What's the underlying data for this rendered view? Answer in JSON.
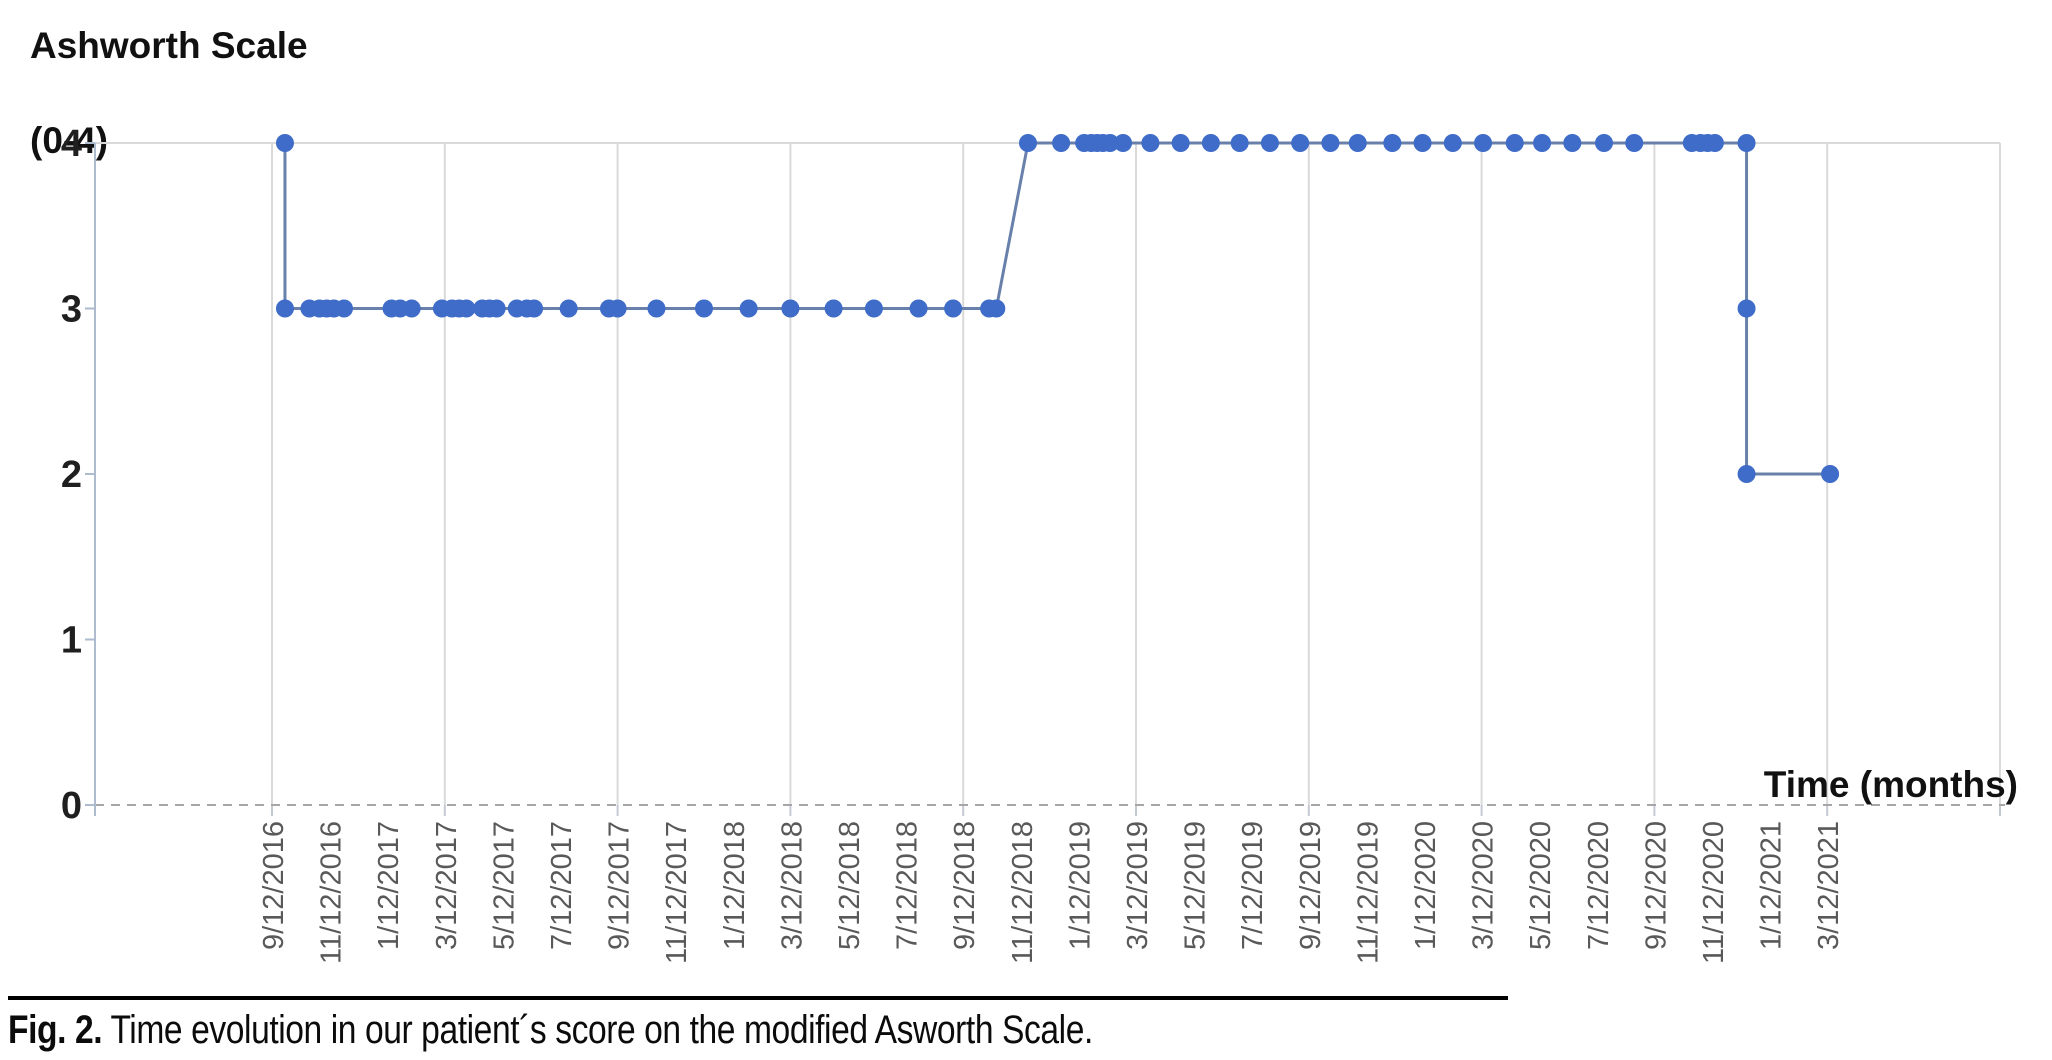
{
  "chart_data": {
    "type": "scatter",
    "title": "Ashworth Scale (0-4)",
    "y_axis_title_lines": [
      "Ashworth Scale",
      "(0-4)"
    ],
    "x_axis_title": "Time (months)",
    "ylabel": "Ashworth Scale (0-4)",
    "xlabel": "Time (months)",
    "ylim": [
      0,
      4
    ],
    "y_ticks": [
      4,
      3,
      2,
      1,
      0
    ],
    "x_tick_labels": [
      "9/12/2016",
      "11/12/2016",
      "1/12/2017",
      "3/12/2017",
      "5/12/2017",
      "7/12/2017",
      "9/12/2017",
      "11/12/2017",
      "1/12/2018",
      "3/12/2018",
      "5/12/2018",
      "7/12/2018",
      "9/12/2018",
      "11/12/2018",
      "1/12/2019",
      "3/12/2019",
      "5/12/2019",
      "7/12/2019",
      "9/12/2019",
      "11/12/2019",
      "1/12/2020",
      "3/12/2020",
      "5/12/2020",
      "7/12/2020",
      "9/12/2020",
      "11/12/2020",
      "1/12/2021",
      "3/12/2021"
    ],
    "x_tick_interval_months": 2,
    "vertical_gridline_every_labels": 3,
    "grid": "vertical-only",
    "zero_line_style": "dashed",
    "legend": "none",
    "series": [
      {
        "name": "Modified Ashworth Scale score",
        "x_unit": "months since 9/12/2016 (estimated from plot)",
        "points_months_value": [
          [
            0.45,
            4
          ],
          [
            0.45,
            3
          ],
          [
            1.3,
            3
          ],
          [
            1.65,
            3
          ],
          [
            1.9,
            3
          ],
          [
            2.15,
            3
          ],
          [
            2.5,
            3
          ],
          [
            4.15,
            3
          ],
          [
            4.45,
            3
          ],
          [
            4.85,
            3
          ],
          [
            5.9,
            3
          ],
          [
            6.25,
            3
          ],
          [
            6.5,
            3
          ],
          [
            6.75,
            3
          ],
          [
            7.3,
            3
          ],
          [
            7.55,
            3
          ],
          [
            7.8,
            3
          ],
          [
            8.5,
            3
          ],
          [
            8.85,
            3
          ],
          [
            9.1,
            3
          ],
          [
            10.3,
            3
          ],
          [
            11.7,
            3
          ],
          [
            12.0,
            3
          ],
          [
            13.35,
            3
          ],
          [
            15.0,
            3
          ],
          [
            16.55,
            3
          ],
          [
            18.0,
            3
          ],
          [
            19.5,
            3
          ],
          [
            20.9,
            3
          ],
          [
            22.45,
            3
          ],
          [
            23.65,
            3
          ],
          [
            24.9,
            3
          ],
          [
            25.15,
            3
          ],
          [
            26.25,
            4
          ],
          [
            27.4,
            4
          ],
          [
            28.2,
            4
          ],
          [
            28.45,
            4
          ],
          [
            28.65,
            4
          ],
          [
            28.85,
            4
          ],
          [
            29.1,
            4
          ],
          [
            29.55,
            4
          ],
          [
            30.5,
            4
          ],
          [
            31.55,
            4
          ],
          [
            32.6,
            4
          ],
          [
            33.6,
            4
          ],
          [
            34.65,
            4
          ],
          [
            35.7,
            4
          ],
          [
            36.75,
            4
          ],
          [
            37.7,
            4
          ],
          [
            38.9,
            4
          ],
          [
            39.95,
            4
          ],
          [
            41.0,
            4
          ],
          [
            42.05,
            4
          ],
          [
            43.15,
            4
          ],
          [
            44.1,
            4
          ],
          [
            45.15,
            4
          ],
          [
            46.25,
            4
          ],
          [
            47.3,
            4
          ],
          [
            49.3,
            4
          ],
          [
            49.6,
            4
          ],
          [
            49.85,
            4
          ],
          [
            50.1,
            4
          ],
          [
            51.2,
            4
          ],
          [
            51.2,
            3
          ],
          [
            51.2,
            2
          ],
          [
            54.1,
            2
          ]
        ]
      }
    ],
    "colors": {
      "marker": "#3E6CC8",
      "line": "#6880AA",
      "gridline": "#D9D9D9",
      "axis": "#AEBACD",
      "zero_dash": "#A6A6A6",
      "x_tick_label": "#595959",
      "y_tick_label": "#1F1F1F",
      "title_text": "#111111"
    }
  },
  "caption": {
    "label": "Fig. 2.",
    "text": " Time evolution in our patient´s score on the modified Asworth Scale."
  }
}
